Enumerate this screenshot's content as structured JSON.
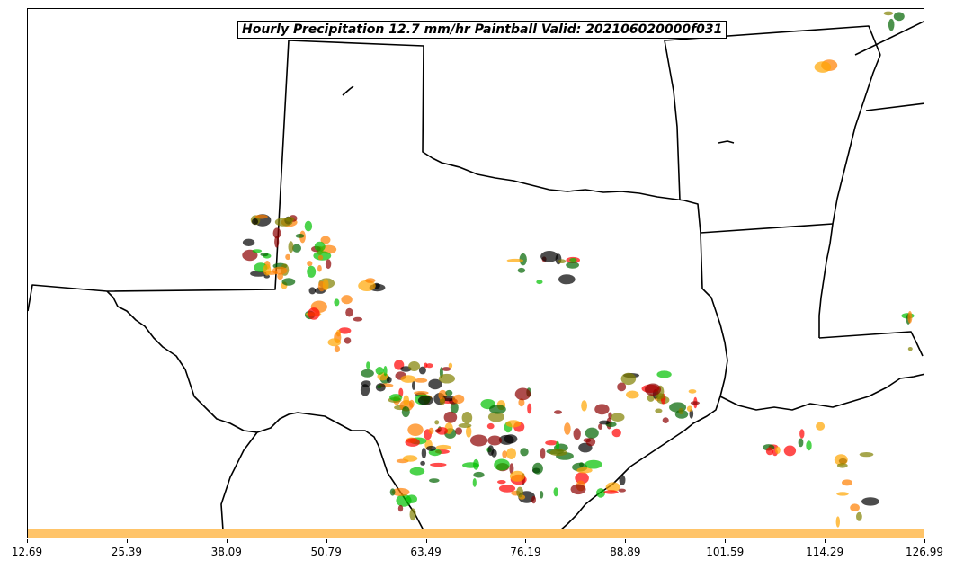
{
  "title": "Hourly Precipitation 12.7 mm/hr Paintball Valid: 202106020000f031",
  "colorbar": {
    "color": "#ffc469",
    "ticks": [
      "12.69",
      "25.39",
      "38.09",
      "50.79",
      "63.49",
      "76.19",
      "88.89",
      "101.59",
      "114.29",
      "126.99"
    ]
  },
  "member_colors": [
    "#000000",
    "#8b0000",
    "#ff0000",
    "#ff7f00",
    "#ffa500",
    "#808000",
    "#00c000",
    "#006400"
  ],
  "map": {
    "region": "Southern Plains / Texas",
    "features": [
      "state-borders",
      "coastline",
      "gulf-of-mexico"
    ]
  }
}
